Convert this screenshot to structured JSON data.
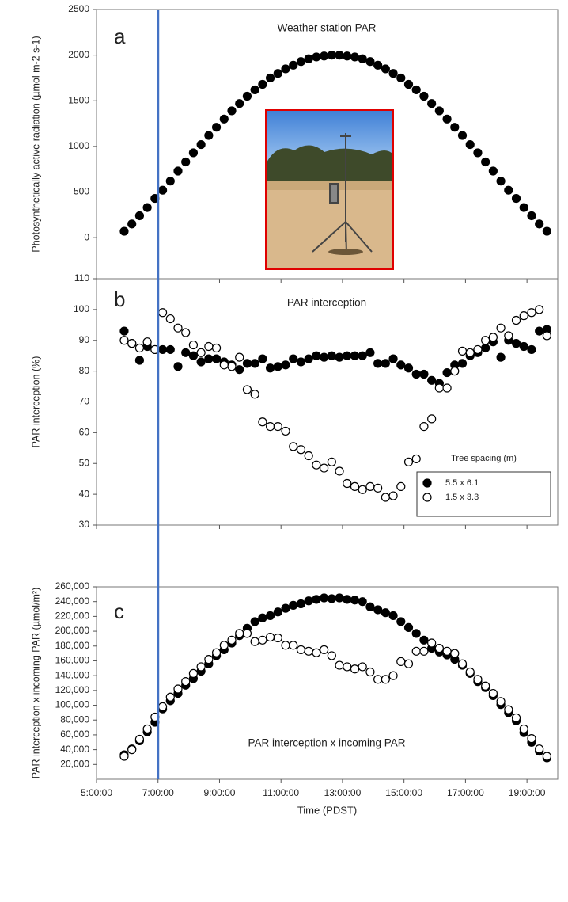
{
  "chart_data": [
    {
      "type": "scatter",
      "panel_label": "a",
      "title": "Weather station PAR",
      "ylabel": "Photosynthetically active radiation (µmol m-2 s-1)",
      "x": [
        5.9,
        6.15,
        6.4,
        6.65,
        6.9,
        7.15,
        7.4,
        7.65,
        7.9,
        8.15,
        8.4,
        8.65,
        8.9,
        9.15,
        9.4,
        9.65,
        9.9,
        10.15,
        10.4,
        10.65,
        10.9,
        11.15,
        11.4,
        11.65,
        11.9,
        12.15,
        12.4,
        12.65,
        12.9,
        13.15,
        13.4,
        13.65,
        13.9,
        14.15,
        14.4,
        14.65,
        14.9,
        15.15,
        15.4,
        15.65,
        15.9,
        16.15,
        16.4,
        16.65,
        16.9,
        17.15,
        17.4,
        17.65,
        17.9,
        18.15,
        18.4,
        18.65,
        18.9,
        19.15,
        19.4,
        19.65
      ],
      "series": [
        {
          "color": "#000000",
          "filled": true,
          "values": [
            70,
            150,
            240,
            330,
            430,
            520,
            620,
            730,
            830,
            930,
            1020,
            1120,
            1210,
            1300,
            1390,
            1470,
            1550,
            1620,
            1680,
            1750,
            1800,
            1850,
            1890,
            1930,
            1960,
            1980,
            1990,
            2000,
            2000,
            1990,
            1980,
            1960,
            1930,
            1890,
            1850,
            1800,
            1750,
            1680,
            1620,
            1550,
            1470,
            1390,
            1300,
            1210,
            1120,
            1020,
            930,
            830,
            730,
            620,
            520,
            430,
            330,
            240,
            150,
            70
          ]
        }
      ],
      "xlim": [
        5,
        20
      ],
      "ylim": [
        -450,
        2500
      ],
      "yticks": [
        0,
        500,
        1000,
        1500,
        2000,
        2500
      ],
      "vline": 7,
      "vline_color": "#4472c4"
    },
    {
      "type": "scatter",
      "panel_label": "b",
      "title": "PAR interception",
      "ylabel": "PAR interception (%)",
      "x": [
        5.9,
        6.15,
        6.4,
        6.65,
        6.9,
        7.15,
        7.4,
        7.65,
        7.9,
        8.15,
        8.4,
        8.65,
        8.9,
        9.15,
        9.4,
        9.65,
        9.9,
        10.15,
        10.4,
        10.65,
        10.9,
        11.15,
        11.4,
        11.65,
        11.9,
        12.15,
        12.4,
        12.65,
        12.9,
        13.15,
        13.4,
        13.65,
        13.9,
        14.15,
        14.4,
        14.65,
        14.9,
        15.15,
        15.4,
        15.65,
        15.9,
        16.15,
        16.4,
        16.65,
        16.9,
        17.15,
        17.4,
        17.65,
        17.9,
        18.15,
        18.4,
        18.65,
        18.9,
        19.15,
        19.4,
        19.65
      ],
      "series": [
        {
          "name": "5.5 x 6.1",
          "color": "#000000",
          "filled": true,
          "values": [
            93,
            89,
            83.5,
            88,
            87,
            87,
            87,
            81.5,
            86,
            85,
            83,
            84,
            84,
            83,
            82,
            80.5,
            82.5,
            82.5,
            84,
            81,
            81.5,
            82,
            84,
            83,
            84,
            85,
            84.5,
            85,
            84.5,
            85,
            85,
            85,
            86,
            82.5,
            82.5,
            84,
            82,
            81,
            79,
            79,
            77,
            76,
            79.5,
            82,
            82.5,
            85,
            86,
            87.5,
            89.5,
            84.5,
            90,
            89,
            88,
            87,
            93,
            93.5
          ]
        },
        {
          "name": "1.5 x 3.3",
          "color": "#000000",
          "filled": false,
          "values": [
            90,
            89,
            87.5,
            89.5,
            87,
            99,
            97,
            94,
            92.5,
            88.5,
            86,
            88,
            87.5,
            82,
            81.5,
            84.5,
            74,
            72.5,
            63.5,
            62,
            62,
            60.5,
            55.5,
            54.5,
            52.5,
            49.5,
            48.5,
            50.5,
            47.5,
            43.5,
            42.5,
            41.5,
            42.5,
            42,
            39,
            39.5,
            42.5,
            50.5,
            51.5,
            62,
            64.5,
            74.5,
            74.5,
            80,
            86.5,
            86,
            87,
            90,
            91,
            94,
            91.5,
            96.5,
            98,
            99,
            100,
            91.5
          ]
        }
      ],
      "xlim": [
        5,
        20
      ],
      "ylim": [
        30,
        110
      ],
      "yticks": [
        30,
        40,
        50,
        60,
        70,
        80,
        90,
        100,
        110
      ],
      "legend_title": "Tree spacing (m)",
      "legend": "lower right"
    },
    {
      "type": "scatter",
      "panel_label": "c",
      "title": "PAR interception x incoming PAR",
      "ylabel": "PAR interception x incoming PAR (µmol/m²)",
      "xlabel": "Time (PDST)",
      "x": [
        5.9,
        6.15,
        6.4,
        6.65,
        6.9,
        7.15,
        7.4,
        7.65,
        7.9,
        8.15,
        8.4,
        8.65,
        8.9,
        9.15,
        9.4,
        9.65,
        9.9,
        10.15,
        10.4,
        10.65,
        10.9,
        11.15,
        11.4,
        11.65,
        11.9,
        12.15,
        12.4,
        12.65,
        12.9,
        13.15,
        13.4,
        13.65,
        13.9,
        14.15,
        14.4,
        14.65,
        14.9,
        15.15,
        15.4,
        15.65,
        15.9,
        16.15,
        16.4,
        16.65,
        16.9,
        17.15,
        17.4,
        17.65,
        17.9,
        18.15,
        18.4,
        18.65,
        18.9,
        19.15,
        19.4,
        19.65
      ],
      "series": [
        {
          "color": "#000000",
          "filled": true,
          "values": [
            33000,
            41000,
            52000,
            64000,
            77000,
            95000,
            106000,
            116000,
            127000,
            136000,
            146000,
            156000,
            167000,
            175000,
            184000,
            194000,
            204000,
            213000,
            218000,
            221000,
            226000,
            231000,
            235000,
            237000,
            241000,
            243000,
            245000,
            244000,
            245000,
            243000,
            242000,
            240000,
            233000,
            229000,
            225000,
            221000,
            213000,
            205000,
            197000,
            188000,
            177000,
            172000,
            168000,
            162000,
            154000,
            143000,
            132000,
            124000,
            113000,
            101000,
            90000,
            79000,
            63000,
            50000,
            38000,
            29000
          ]
        },
        {
          "color": "#000000",
          "filled": false,
          "values": [
            31000,
            40000,
            54000,
            68000,
            84000,
            98000,
            111000,
            122000,
            132000,
            143000,
            152000,
            162000,
            171000,
            181000,
            188000,
            197000,
            197000,
            186000,
            188000,
            192000,
            191000,
            181000,
            181000,
            175000,
            173000,
            171000,
            175000,
            167000,
            154000,
            152000,
            149000,
            152000,
            145000,
            135000,
            135000,
            140000,
            159000,
            156000,
            173000,
            173000,
            184000,
            177000,
            173000,
            170000,
            156000,
            145000,
            135000,
            126000,
            116000,
            105000,
            94000,
            83000,
            68000,
            55000,
            41000,
            31000
          ]
        }
      ],
      "xlim": [
        5,
        20
      ],
      "ylim": [
        0,
        260000
      ],
      "yticks": [
        {
          "value": 20000,
          "label": "20,000"
        },
        {
          "value": 40000,
          "label": "40,000"
        },
        {
          "value": 60000,
          "label": "60,000"
        },
        {
          "value": 80000,
          "label": "80,000"
        },
        {
          "value": 100000,
          "label": "100,000"
        },
        {
          "value": 120000,
          "label": "120,000"
        },
        {
          "value": 140000,
          "label": "140,000"
        },
        {
          "value": 160000,
          "label": "160,000"
        },
        {
          "value": 180000,
          "label": "180,000"
        },
        {
          "value": 200000,
          "label": "200,000"
        },
        {
          "value": 220000,
          "label": "220,000"
        },
        {
          "value": 240000,
          "label": "240,000"
        },
        {
          "value": 260000,
          "label": "260,000"
        }
      ],
      "xticks": [
        {
          "value": 5,
          "label": "5:00:00"
        },
        {
          "value": 7,
          "label": "7:00:00"
        },
        {
          "value": 9,
          "label": "9:00:00"
        },
        {
          "value": 11,
          "label": "11:00:00"
        },
        {
          "value": 13,
          "label": "13:00:00"
        },
        {
          "value": 15,
          "label": "15:00:00"
        },
        {
          "value": 17,
          "label": "17:00:00"
        },
        {
          "value": 19,
          "label": "19:00:00"
        }
      ]
    }
  ]
}
